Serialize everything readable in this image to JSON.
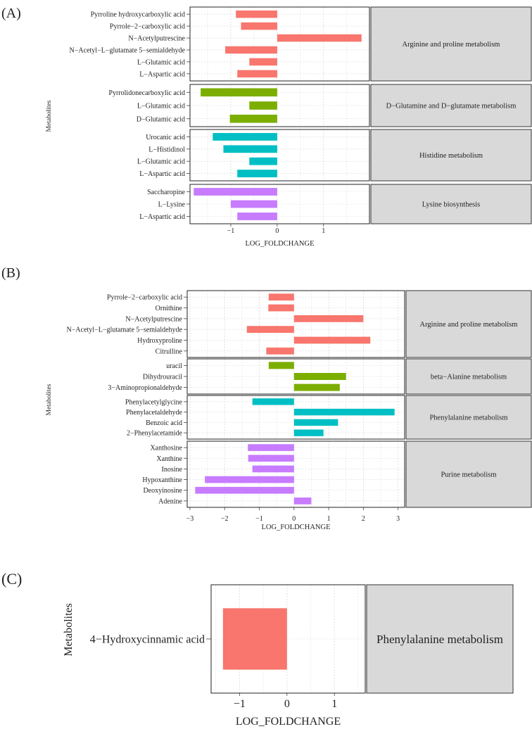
{
  "chart_data": [
    {
      "type": "bar",
      "orientation": "horizontal",
      "label": "(A)",
      "xlabel": "LOG_FOLDCHANGE",
      "ylabel": "Metabolites",
      "xlim": [
        -1.88,
        1.99
      ],
      "xticks": [
        -1,
        0,
        1
      ],
      "tick_labels": [
        "−1",
        "0",
        "1"
      ],
      "grid": true,
      "facets": [
        {
          "pathway": "Arginine and proline metabolism",
          "color": "#F8766D",
          "categories": [
            "Pyrroline hydroxycarboxylic acid",
            "Pyrrole−2−carboxylic acid",
            "N−Acetylputrescine",
            "N−Acetyl−L−glutamate 5−semialdehyde",
            "L−Glutamic acid",
            "L−Aspartic acid"
          ],
          "values": [
            -0.89,
            -0.78,
            1.82,
            -1.12,
            -0.6,
            -0.86
          ]
        },
        {
          "pathway": "D−Glutamine and D−glutamate metabolism",
          "color": "#7CAE00",
          "categories": [
            "Pyrrolidonecarboxylic acid",
            "L−Glutamic acid",
            "D−Glutamic acid"
          ],
          "values": [
            -1.65,
            -0.6,
            -1.02
          ]
        },
        {
          "pathway": "Histidine metabolism",
          "color": "#00BFC4",
          "categories": [
            "Urocanic acid",
            "L−Histidinol",
            "L−Glutamic acid",
            "L−Aspartic acid"
          ],
          "values": [
            -1.39,
            -1.16,
            -0.6,
            -0.86
          ]
        },
        {
          "pathway": "Lysine biosynthesis",
          "color": "#C77CFF",
          "categories": [
            "Saccharopine",
            "L−Lysine",
            "L−Aspartic acid"
          ],
          "values": [
            -1.8,
            -1.0,
            -0.86
          ]
        }
      ]
    },
    {
      "type": "bar",
      "orientation": "horizontal",
      "label": "(B)",
      "xlabel": "LOG_FOLDCHANGE",
      "ylabel": "Metabolites",
      "xlim": [
        -3.08,
        3.19
      ],
      "xticks": [
        -3,
        -2,
        -1,
        0,
        1,
        2,
        3
      ],
      "tick_labels": [
        "−3",
        "−2",
        "−1",
        "0",
        "1",
        "2",
        "3"
      ],
      "grid": true,
      "facets": [
        {
          "pathway": "Arginine and proline metabolism",
          "color": "#F8766D",
          "categories": [
            "Pyrrole−2−carboxylic acid",
            "Ornithine",
            "N−Acetylputrescine",
            "N−Acetyl−L−glutamate 5−semialdehyde",
            "Hydroxyproline",
            "Citrulline"
          ],
          "values": [
            -0.73,
            -0.74,
            2.0,
            -1.36,
            2.2,
            -0.8
          ]
        },
        {
          "pathway": "beta−Alanine metabolism",
          "color": "#7CAE00",
          "categories": [
            "uracil",
            "Dihydrouracil",
            "3−Aminopropionaldehyde"
          ],
          "values": [
            -0.73,
            1.5,
            1.32
          ]
        },
        {
          "pathway": "Phenylalanine metabolism",
          "color": "#00BFC4",
          "categories": [
            "Phenylacetylglycine",
            "Phenylacetaldehyde",
            "Benzoic acid",
            "2−Phenylacetamide"
          ],
          "values": [
            -1.2,
            2.9,
            1.27,
            0.85
          ]
        },
        {
          "pathway": "Purine metabolism",
          "color": "#C77CFF",
          "categories": [
            "Xanthosine",
            "Xanthine",
            "Inosine",
            "Hypoxanthine",
            "Deoxyinosine",
            "Adenine"
          ],
          "values": [
            -1.33,
            -1.32,
            -1.2,
            -2.57,
            -2.85,
            0.5
          ]
        }
      ]
    },
    {
      "type": "bar",
      "orientation": "horizontal",
      "label": "(C)",
      "xlabel": "LOG_FOLDCHANGE",
      "ylabel": "Metabolites",
      "xlim": [
        -1.6,
        1.65
      ],
      "xticks": [
        -1,
        0,
        1
      ],
      "tick_labels": [
        "−1",
        "0",
        "1"
      ],
      "grid": true,
      "facets": [
        {
          "pathway": "Phenylalanine metabolism",
          "color": "#F8766D",
          "categories": [
            "4−Hydroxycinnamic acid"
          ],
          "values": [
            -1.35
          ]
        }
      ]
    }
  ]
}
